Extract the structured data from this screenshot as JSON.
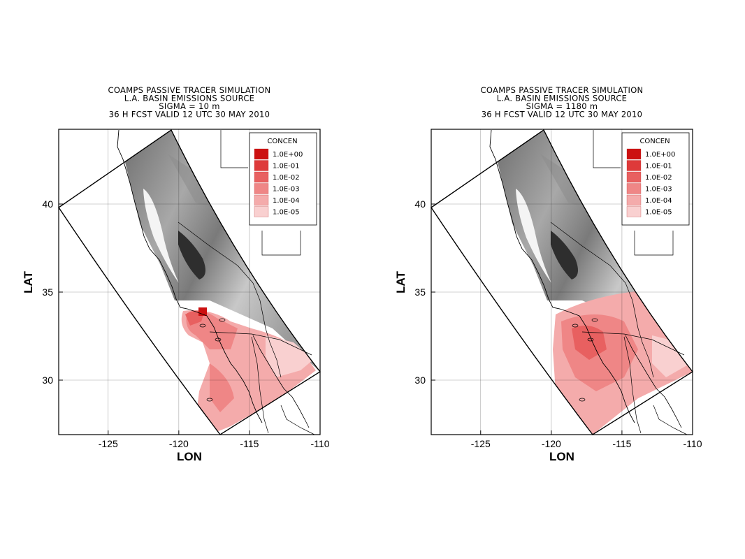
{
  "panels": [
    {
      "title_lines": [
        "COAMPS PASSIVE TRACER SIMULATION",
        "L.A. BASIN EMISSIONS SOURCE",
        "SIGMA = 10 m",
        "36 H FCST VALID 12 UTC 30 MAY 2010"
      ],
      "xlabel": "LON",
      "ylabel": "LAT",
      "legend_title": "CONCEN",
      "legend_levels": [
        "1.0E+00",
        "1.0E-01",
        "1.0E-02",
        "1.0E-03",
        "1.0E-04",
        "1.0E-05"
      ],
      "plume_variant": "surface"
    },
    {
      "title_lines": [
        "COAMPS PASSIVE TRACER SIMULATION",
        "L.A. BASIN EMISSIONS SOURCE",
        "SIGMA = 1180 m",
        "36 H FCST VALID 12 UTC 30 MAY 2010"
      ],
      "xlabel": "LON",
      "ylabel": "LAT",
      "legend_title": "CONCEN",
      "legend_levels": [
        "1.0E+00",
        "1.0E-01",
        "1.0E-02",
        "1.0E-03",
        "1.0E-04",
        "1.0E-05"
      ],
      "plume_variant": "elevated"
    }
  ],
  "x_ticks": [
    "-125",
    "-120",
    "-115",
    "-110"
  ],
  "y_ticks": [
    "40",
    "35",
    "30"
  ],
  "legend_colors": [
    "#cc1010",
    "#de3a3a",
    "#e86060",
    "#ef8686",
    "#f4abab",
    "#f9d0d0"
  ],
  "terrain_color": "#8a8a8a"
}
